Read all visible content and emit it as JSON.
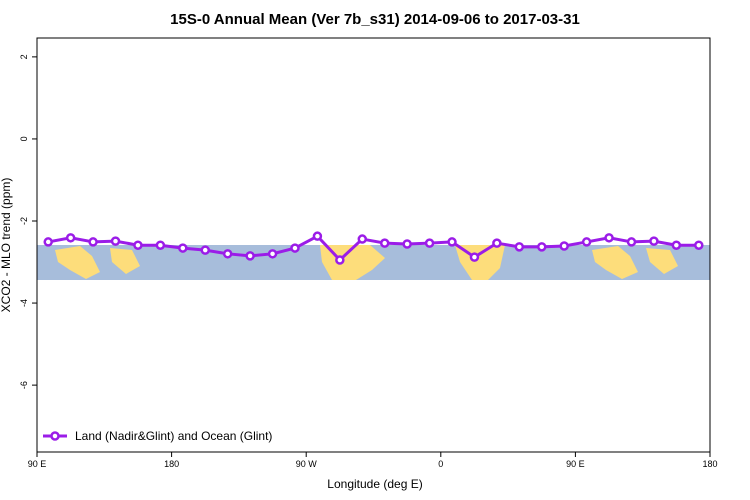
{
  "chart_data": {
    "type": "line",
    "title": "15S-0 Annual Mean (Ver 7b_s31)   2014-09-06 to 2017-03-31",
    "x_label": "Longitude (deg E)",
    "y_label": "XCO2 - MLO trend (ppm)",
    "xlim": [
      90,
      540
    ],
    "xticks": [
      {
        "value": 90,
        "label": "90 E"
      },
      180,
      {
        "value": 270,
        "label": "90 W"
      },
      {
        "value": 360,
        "label": "0"
      },
      {
        "value": 450,
        "label": "90 E"
      },
      {
        "value": 540,
        "label": "180"
      }
    ],
    "ylim": [
      -7.63,
      2.46
    ],
    "yticks": [
      -6,
      -4,
      -2,
      0,
      2
    ],
    "x": [
      97.5,
      112.5,
      127.5,
      142.5,
      157.5,
      172.5,
      187.5,
      202.5,
      217.5,
      232.5,
      247.5,
      262.5,
      277.5,
      292.5,
      307.5,
      322.5,
      337.5,
      352.5,
      367.5,
      382.5,
      397.5,
      412.5,
      427.5,
      442.5,
      457.5,
      472.5,
      487.5,
      502.5,
      517.5,
      532.5
    ],
    "series": [
      {
        "name": "Land (Nadir&Glint) and Ocean (Glint)",
        "color": "#9b1ce8",
        "values": [
          -2.51,
          -2.41,
          -2.51,
          -2.49,
          -2.59,
          -2.59,
          -2.66,
          -2.71,
          -2.8,
          -2.85,
          -2.8,
          -2.66,
          -2.37,
          -2.95,
          -2.44,
          -2.54,
          -2.56,
          -2.54,
          -2.51,
          -2.88,
          -2.54,
          -2.63,
          -2.63,
          -2.61,
          -2.51,
          -2.41,
          -2.51,
          -2.49,
          -2.59,
          -2.59
        ]
      }
    ],
    "legend": "bottom-left"
  }
}
